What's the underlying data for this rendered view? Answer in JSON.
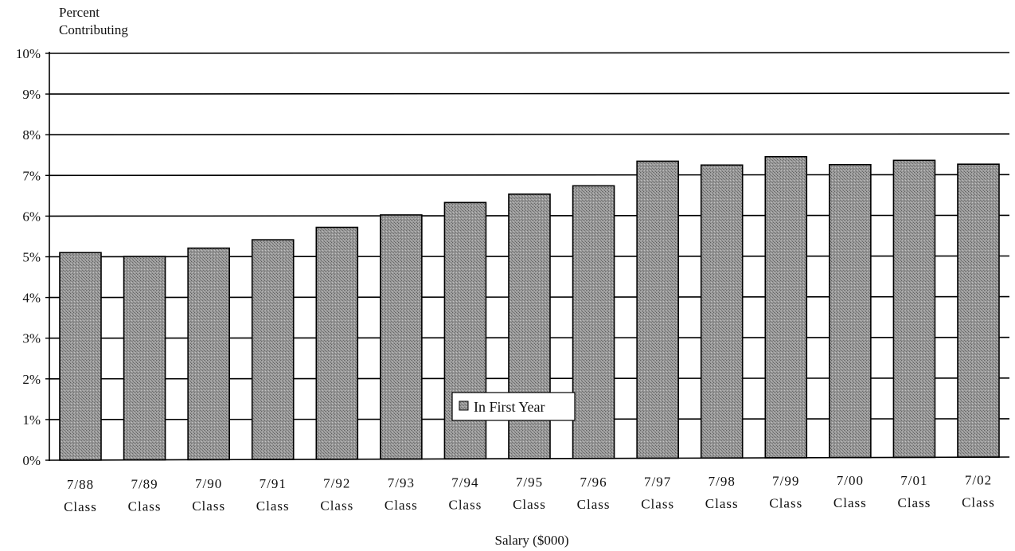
{
  "chart_data": {
    "type": "bar",
    "ylabel": [
      "Percent",
      "Contributing"
    ],
    "xlabel": "Salary ($000)",
    "ylim": [
      0,
      10
    ],
    "yticks": [
      "0%",
      "1%",
      "2%",
      "3%",
      "4%",
      "5%",
      "6%",
      "7%",
      "8%",
      "9%",
      "10%"
    ],
    "categories": [
      [
        "7/88",
        "Class"
      ],
      [
        "7/89",
        "Class"
      ],
      [
        "7/90",
        "Class"
      ],
      [
        "7/91",
        "Class"
      ],
      [
        "7/92",
        "Class"
      ],
      [
        "7/93",
        "Class"
      ],
      [
        "7/94",
        "Class"
      ],
      [
        "7/95",
        "Class"
      ],
      [
        "7/96",
        "Class"
      ],
      [
        "7/97",
        "Class"
      ],
      [
        "7/98",
        "Class"
      ],
      [
        "7/99",
        "Class"
      ],
      [
        "7/00",
        "Class"
      ],
      [
        "7/01",
        "Class"
      ],
      [
        "7/02",
        "Class"
      ]
    ],
    "series": [
      {
        "name": "In First Year",
        "values": [
          5.1,
          5.0,
          5.2,
          5.4,
          5.7,
          6.0,
          6.3,
          6.5,
          6.7,
          7.3,
          7.2,
          7.4,
          7.2,
          7.3,
          7.2
        ]
      }
    ],
    "grid": true,
    "legend": "bottom-center",
    "colors": {
      "bar": "#8c8c8c",
      "grid": "#000000"
    }
  }
}
